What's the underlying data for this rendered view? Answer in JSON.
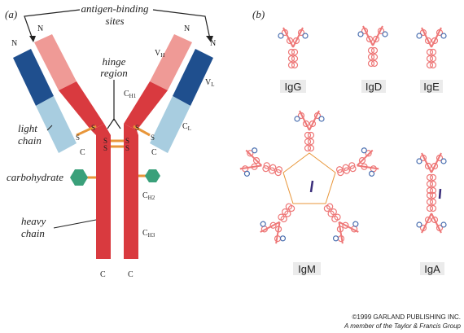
{
  "panels": {
    "a": "(a)",
    "b": "(b)"
  },
  "antibody": {
    "labels": {
      "antigen_binding": [
        "antigen-binding",
        "sites"
      ],
      "hinge": [
        "hinge",
        "region"
      ],
      "light_chain": [
        "light",
        "chain"
      ],
      "carbohydrate": "carbohydrate",
      "heavy_chain": [
        "heavy",
        "chain"
      ],
      "domains": {
        "vh": "V",
        "vh_sub": "H",
        "vl": "V",
        "vl_sub": "L",
        "ch1": "C",
        "ch1_sub": "H1",
        "cl": "C",
        "cl_sub": "L",
        "ch2": "C",
        "ch2_sub": "H2",
        "ch3": "C",
        "ch3_sub": "H3"
      },
      "n_terminus": "N",
      "c_terminus": "C",
      "disulfide": "S"
    },
    "colors": {
      "heavy_dark": "#d93a3f",
      "heavy_light": "#ef9a96",
      "light_dark": "#1f4f8e",
      "light_light": "#a8cde0",
      "carbohydrate": "#3aa07a",
      "disulfide": "#e8963a"
    }
  },
  "classes": [
    "IgG",
    "IgD",
    "IgE",
    "IgM",
    "IgA"
  ],
  "credit": {
    "line1": "©1999 GARLAND PUBLISHING INC.",
    "line2": "A member of the Taylor & Francis Group"
  }
}
